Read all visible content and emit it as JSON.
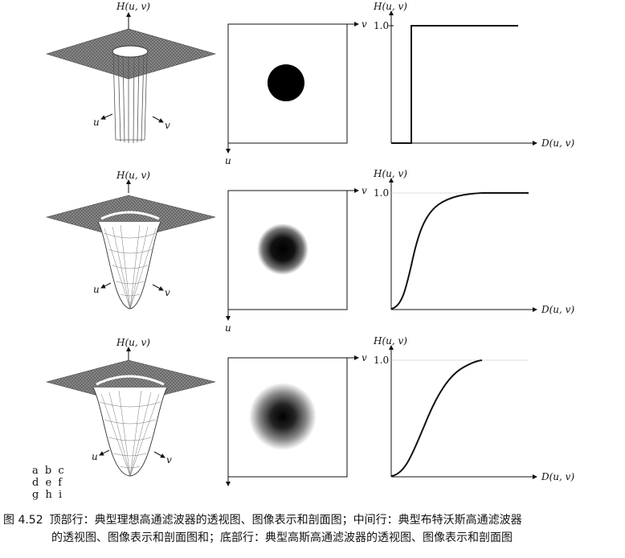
{
  "rows": [
    {
      "id": "ideal",
      "profile": "ideal"
    },
    {
      "id": "butterworth",
      "profile": "butterworth"
    },
    {
      "id": "gaussian",
      "profile": "gaussian"
    }
  ],
  "labels": {
    "h_axis": "H(u, v)",
    "u_axis": "u",
    "v_axis": "v",
    "d_axis": "D(u, v)",
    "one_tick": "1.0"
  },
  "panel_letters": [
    "a  b  c",
    "d  e  f",
    "g  h  i"
  ],
  "caption": {
    "fig_number": "图 4.52",
    "line1": "顶部行：典型理想高通滤波器的透视图、图像表示和剖面图；中间行：典型布特沃斯高通滤波器",
    "line2": "的透视图、图像表示和剖面图和；底部行：典型高斯高通滤波器的透视图、图像表示和剖面图"
  }
}
